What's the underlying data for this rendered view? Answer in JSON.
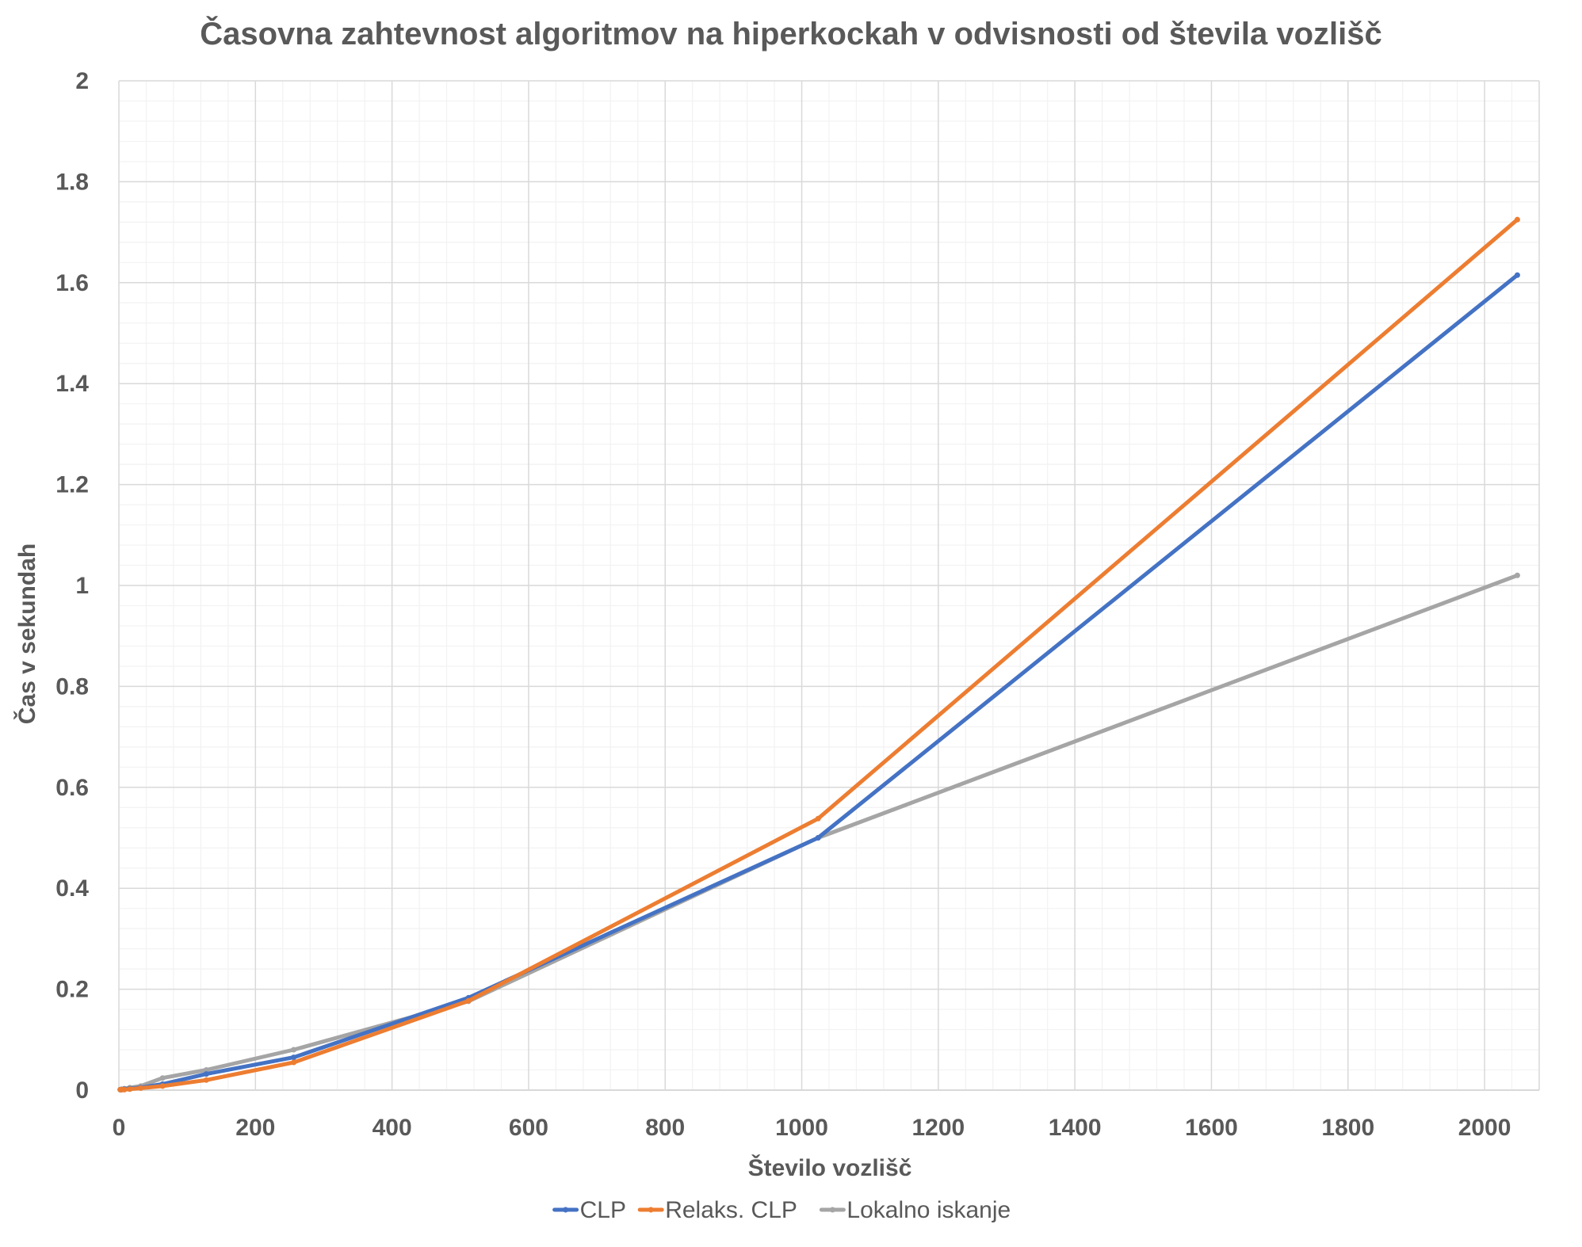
{
  "chart_data": {
    "type": "line",
    "title": "Časovna zahtevnost algoritmov na hiperkockah v odvisnosti od števila vozlišč",
    "xlabel": "Število vozlišč",
    "ylabel": "Čas v sekundah",
    "xlim": [
      0,
      2080
    ],
    "ylim": [
      0,
      2
    ],
    "x_ticks": [
      0,
      200,
      400,
      600,
      800,
      1000,
      1200,
      1400,
      1600,
      1800,
      2000
    ],
    "y_ticks": [
      0,
      0.2,
      0.4,
      0.6,
      0.8,
      1,
      1.2,
      1.4,
      1.6,
      1.8,
      2
    ],
    "x_tick_labels": [
      "0",
      "200",
      "400",
      "600",
      "800",
      "1000",
      "1200",
      "1400",
      "1600",
      "1800",
      "2000"
    ],
    "y_tick_labels": [
      "0",
      "0.2",
      "0.4",
      "0.6",
      "0.8",
      "1",
      "1.2",
      "1.4",
      "1.6",
      "1.8",
      "2"
    ],
    "grid": true,
    "minor_grid": true,
    "legend_position": "bottom",
    "x": [
      2,
      4,
      8,
      16,
      32,
      64,
      128,
      256,
      512,
      1024,
      2048
    ],
    "series": [
      {
        "name": "CLP",
        "color": "#4472C4",
        "values": [
          0.001,
          0.001,
          0.002,
          0.003,
          0.005,
          0.012,
          0.032,
          0.065,
          0.183,
          0.5,
          1.615
        ]
      },
      {
        "name": "Relaks. CLP",
        "color": "#ED7D31",
        "values": [
          0.001,
          0.001,
          0.001,
          0.002,
          0.004,
          0.008,
          0.02,
          0.055,
          0.177,
          0.538,
          1.725
        ]
      },
      {
        "name": "Lokalno iskanje",
        "color": "#A5A5A5",
        "values": [
          0.001,
          0.002,
          0.003,
          0.005,
          0.008,
          0.024,
          0.04,
          0.08,
          0.176,
          0.5,
          1.02
        ]
      }
    ]
  }
}
